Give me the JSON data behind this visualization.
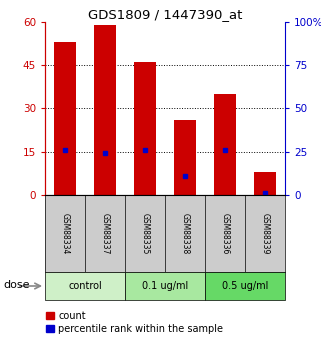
{
  "title": "GDS1809 / 1447390_at",
  "samples": [
    "GSM88334",
    "GSM88337",
    "GSM88335",
    "GSM88338",
    "GSM88336",
    "GSM88339"
  ],
  "bar_heights": [
    53,
    59,
    46,
    26,
    35,
    8
  ],
  "percentile_values": [
    26,
    24,
    26,
    11,
    26,
    1
  ],
  "groups": [
    {
      "label": "control",
      "indices": [
        0,
        1
      ],
      "color": "#cff0c8"
    },
    {
      "label": "0.1 ug/ml",
      "indices": [
        2,
        3
      ],
      "color": "#a8e8a0"
    },
    {
      "label": "0.5 ug/ml",
      "indices": [
        4,
        5
      ],
      "color": "#66d966"
    }
  ],
  "ylim_left": [
    0,
    60
  ],
  "ylim_right": [
    0,
    100
  ],
  "yticks_left": [
    0,
    15,
    30,
    45,
    60
  ],
  "ytick_labels_left": [
    "0",
    "15",
    "30",
    "45",
    "60"
  ],
  "yticks_right": [
    0,
    25,
    50,
    75,
    100
  ],
  "ytick_labels_right": [
    "0",
    "25",
    "50",
    "75",
    "100%"
  ],
  "bar_color": "#cc0000",
  "marker_color": "#0000cc",
  "bar_width": 0.55,
  "left_tick_color": "#cc0000",
  "right_tick_color": "#0000cc",
  "dose_label": "dose",
  "legend_count_label": "count",
  "legend_percentile_label": "percentile rank within the sample",
  "sample_row_color": "#cccccc",
  "bg_color": "#ffffff"
}
